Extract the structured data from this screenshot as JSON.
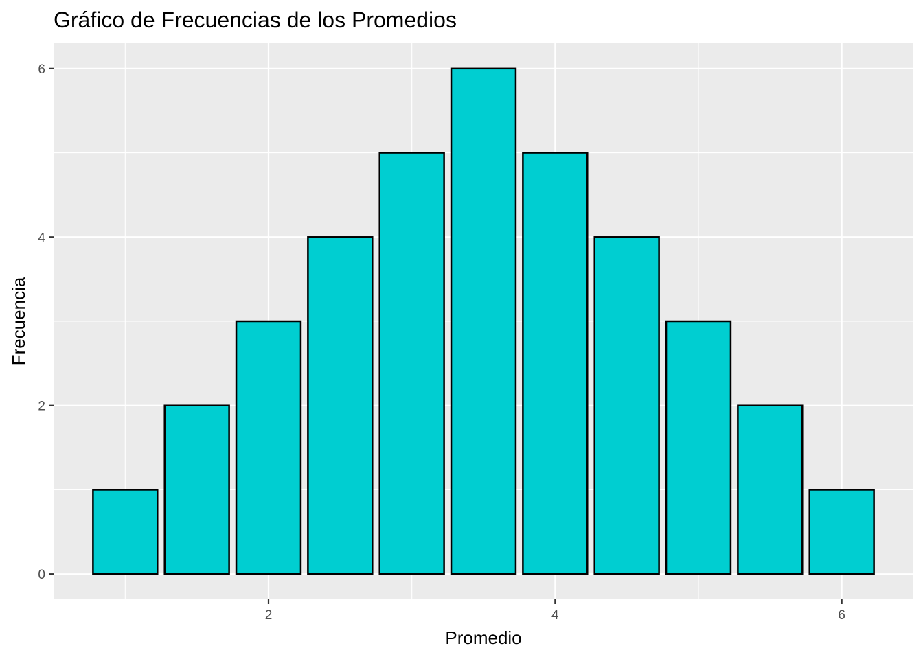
{
  "chart_data": {
    "type": "bar",
    "title": "Gráfico de Frecuencias de los Promedios",
    "xlabel": "Promedio",
    "ylabel": "Frecuencia",
    "x": [
      1.0,
      1.5,
      2.0,
      2.5,
      3.0,
      3.5,
      4.0,
      4.5,
      5.0,
      5.5,
      6.0
    ],
    "values": [
      1,
      2,
      3,
      4,
      5,
      6,
      5,
      4,
      3,
      2,
      1
    ],
    "bar_width": 0.45,
    "xlim": [
      0.5,
      6.5
    ],
    "ylim": [
      -0.3,
      6.3
    ],
    "x_ticks": [
      2,
      4,
      6
    ],
    "x_tick_labels": [
      "2",
      "4",
      "6"
    ],
    "y_ticks": [
      0,
      2,
      4,
      6
    ],
    "y_tick_labels": [
      "0",
      "2",
      "4",
      "6"
    ],
    "grid": true,
    "colors": {
      "bar_fill": "#00CED1",
      "bar_stroke": "#000000",
      "panel_bg": "#EBEBEB",
      "grid": "#FFFFFF"
    }
  }
}
